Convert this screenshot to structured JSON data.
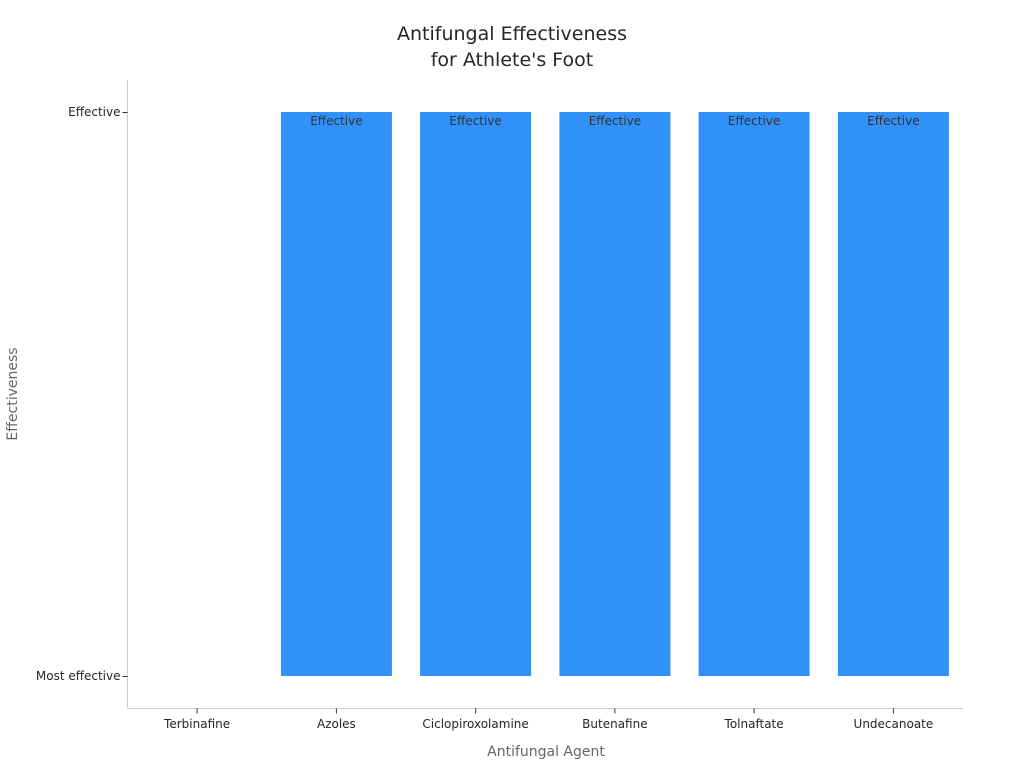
{
  "chart_data": {
    "type": "bar",
    "title": "Antifungal Effectiveness\nfor Athlete's Foot",
    "xlabel": "Antifungal Agent",
    "ylabel": "Effectiveness",
    "categories": [
      "Terbinafine",
      "Azoles",
      "Ciclopiroxolamine",
      "Butenafine",
      "Tolnaftate",
      "Undecanoate"
    ],
    "y_categories": [
      "Most effective",
      "Effective"
    ],
    "values": [
      "Most effective",
      "Effective",
      "Effective",
      "Effective",
      "Effective",
      "Effective"
    ],
    "data_labels": [
      "",
      "Effective",
      "Effective",
      "Effective",
      "Effective",
      "Effective"
    ],
    "bar_color": "#3091f9",
    "grid": false,
    "legend": false
  }
}
